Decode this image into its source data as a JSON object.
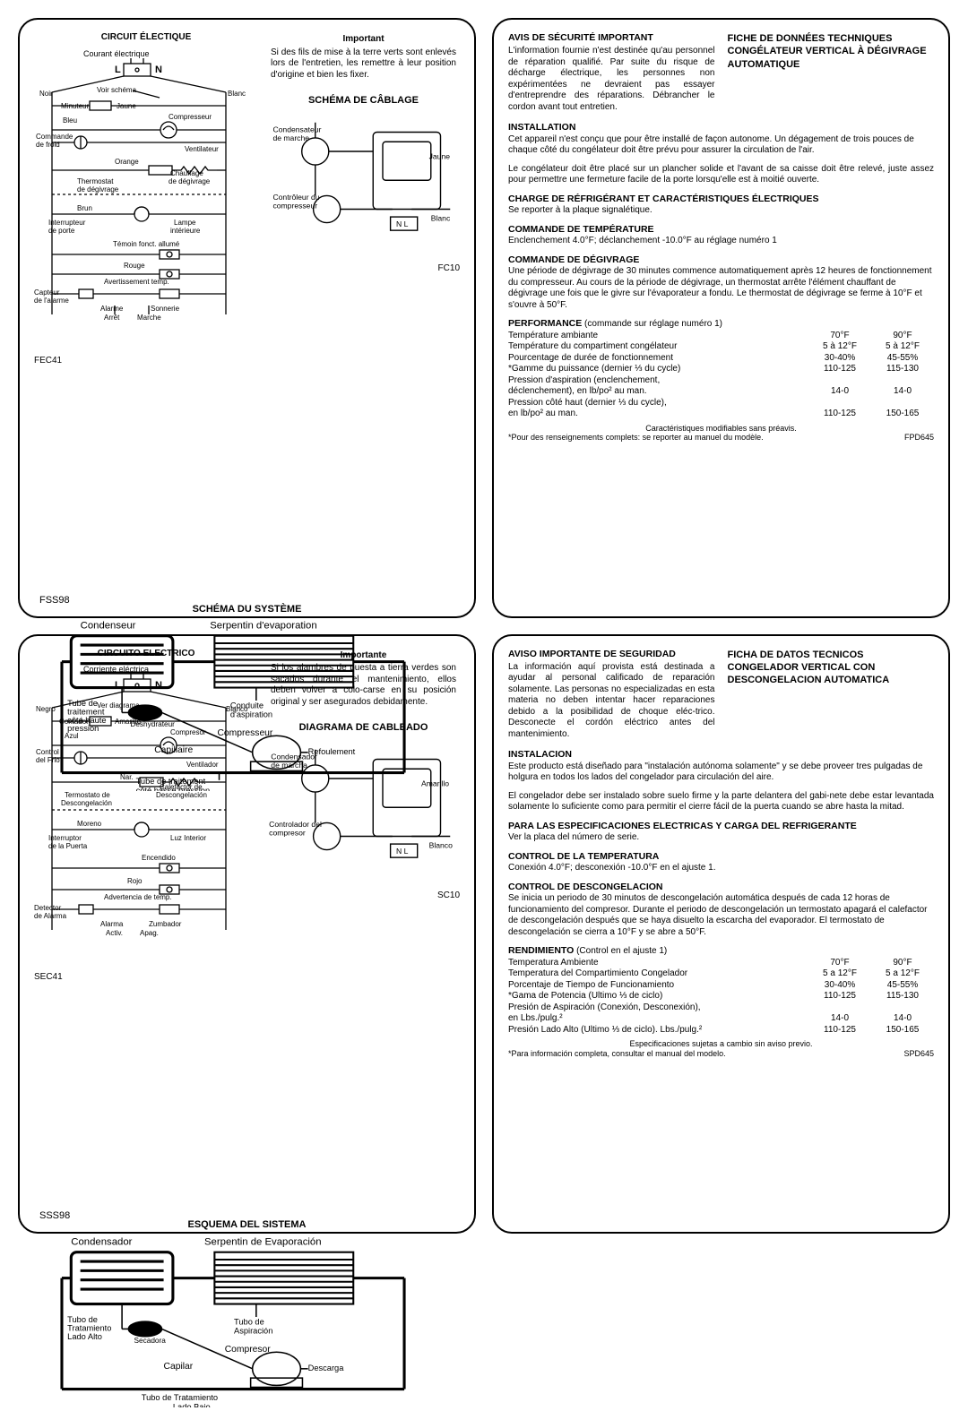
{
  "fr": {
    "circuit_title": "CIRCUIT ÉLECTIQUE",
    "elec_current": "Courant électrique",
    "L": "L",
    "N": "N",
    "noir": "Noir",
    "blanc": "Blanc",
    "voir_schema": "Voir schéma",
    "minuteur": "Minuteur",
    "jaune": "Jaune",
    "bleu": "Bleu",
    "compresseur": "Compresseur",
    "commande_froid": "Commande\nde froid",
    "ventilateur": "Ventilateur",
    "orange": "Orange",
    "chauffage": "Chauffage\nde dégivrage",
    "thermostat": "Thermostat\nde dégivrage",
    "brun": "Brun",
    "interrupteur": "Interrupteur\nde porte",
    "lampe": "Lampe\nintérieure",
    "temoin": "Témoin fonct. allumé",
    "rouge": "Rouge",
    "avert": "Avertissement temp.",
    "capteur": "Capteur\nde l'alarme",
    "alarme": "Alarme",
    "sonnerie": "Sonnerie",
    "arret": "Arrêt",
    "marche": "Marche",
    "fec": "FEC41",
    "fc10": "FC10",
    "important_title": "Important",
    "important_body": "Si des fils de mise à la terre verts sont enlevés lors de l'entretien, les remettre à leur position d'origine et bien les fixer.",
    "wiring_title": "SCHÉMA DE CÂBLAGE",
    "cond_marche": "Condensateur\nde marche",
    "ctrl_comp": "Contrôleur du\ncompresseur",
    "sys_title": "SCHÉMA DU SYSTÈME",
    "condenseur": "Condenseur",
    "serpentin": "Serpentin d'evaporation",
    "tube_hp": "Tube de\ntraitement\ncôté haute\npression",
    "deshy": "Déshydrateur",
    "conduite": "Conduite\nd'aspiration",
    "compresseur2": "Compresseur",
    "capillaire": "Capillaire",
    "refoul": "Refoulement",
    "tube_bp": "Tube de traitement\ncôté basse pression",
    "fss": "FSS98"
  },
  "es": {
    "circuit_title": "CIRCUITO ELECTRICO",
    "elec_current": "Corriente eléctrica",
    "L": "L",
    "N": "N",
    "negro": "Negro",
    "blanco": "Blanco",
    "ver_diag": "Ver diagrama",
    "contador": "Contador",
    "amarillo": "Amarillo",
    "azul": "Azul",
    "compresor": "Compresor",
    "control_frio": "Control\ndel Frio",
    "ventilador": "Ventilador",
    "nar": "Nar.",
    "calefactor": "Calefactor de\nDescongelación",
    "termostato": "Termostato de\nDescongelación",
    "moreno": "Moreno",
    "interruptor": "Interruptor\nde la Puerta",
    "luz": "Luz Interior",
    "encendido": "Encendido",
    "rojo": "Rojo",
    "advert": "Advertencia de temp.",
    "detector": "Detector\nde Alarma",
    "alarma": "Alarma",
    "zumbador": "Zumbador",
    "activ": "Activ.",
    "apag": "Apag.",
    "sec": "SEC41",
    "sc10": "SC10",
    "important_title": "Importante",
    "important_body": "Si los alambres de puesta a tierra verdes son sacados durante el mantenimiento, ellos deben volver a colo-carse en su posición original y ser asegurados debidamente.",
    "wiring_title": "DIAGRAMA DE CABLEADO",
    "cond_marcha": "Condensador\nde marcha",
    "ctrl_comp": "Controlador del\ncompresor",
    "sys_title": "ESQUEMA DEL SISTEMA",
    "condensador": "Condensador",
    "serpentin": "Serpentin de Evaporación",
    "tubo_alto": "Tubo de\nTratamiento\nLado Alto",
    "secadora": "Secadora",
    "tubo_asp": "Tubo de\nAspiración",
    "compresor2": "Compresor",
    "capilar": "Capilar",
    "descarga": "Descarga",
    "tubo_bajo": "Tubo de Tratamiento\nLado Bajo",
    "sss": "SSS98"
  },
  "fr_right": {
    "safety_title": "AVIS DE SÉCURITÉ IMPORTANT",
    "safety_body": "L'information fournie n'est destinée qu'au personnel de réparation qualifié. Par suite du risque de décharge électrique, les personnes non expérimentées ne devraient pas essayer d'entreprendre des réparations. Débrancher le cordon avant tout entretien.",
    "data_title": "FICHE DE DONNÉES TECHNIQUES CONGÉLATEUR VERTICAL À DÉGIVRAGE AUTOMATIQUE",
    "install_h": "INSTALLATION",
    "install_1": "Cet appareil n'est conçu que pour être installé de façon autonome. Un dégagement de trois pouces de chaque côté du congélateur doit être prévu pour assurer la circulation de l'air.",
    "install_2": "Le congélateur doit être placé sur un plancher solide et l'avant de sa caisse doit être relevé, juste assez pour permettre une fermeture facile de la porte lorsqu'elle est à moitié ouverte.",
    "charge_h": "CHARGE DE RÉFRIGÉRANT ET CARACTÉRISTIQUES ÉLECTRIQUES",
    "charge_b": "Se reporter à la plaque signalétique.",
    "temp_h": "COMMANDE DE TEMPÉRATURE",
    "temp_b": "Enclenchement 4.0°F; déclanchement -10.0°F au réglage numéro 1",
    "defrost_h": "COMMANDE DE DÉGIVRAGE",
    "defrost_b": "Une période de dégivrage de 30 minutes commence automatiquement après 12 heures de fonctionnement du compresseur. Au cours de la période de dégivrage, un thermostat arrête l'élément chauffant de dégivrage une fois que le givre sur l'évaporateur a fondu. Le thermostat de dégivrage se ferme à 10°F et s'ouvre à 50°F.",
    "perf_h": "PERFORMANCE",
    "perf_sub": "(commande sur réglage numéro 1)",
    "cols": [
      "70°F",
      "90°F"
    ],
    "rows": [
      {
        "l": "Température ambiante",
        "a": "70°F",
        "b": "90°F",
        "hdr": true
      },
      {
        "l": "Température du compartiment congélateur",
        "a": "5 à 12°F",
        "b": "5 à 12°F"
      },
      {
        "l": "Pourcentage de durée de fonctionnement",
        "a": "30-40%",
        "b": "45-55%"
      },
      {
        "l": "*Gamme du puissance (dernier ⅓ du cycle)",
        "a": "110-125",
        "b": "115-130"
      },
      {
        "l": "Pression d'aspiration (enclenchement,",
        "a": "",
        "b": ""
      },
      {
        "l": "déclenchement), en lb/po² au man.",
        "a": "14-0",
        "b": "14-0"
      },
      {
        "l": "Pression côté haut (dernier ⅓ du cycle),",
        "a": "",
        "b": ""
      },
      {
        "l": "en lb/po² au man.",
        "a": "110-125",
        "b": "150-165"
      }
    ],
    "foot1": "Caractéristiques modifiables sans préavis.",
    "foot2": "*Pour des renseignements complets: se reporter au manuel du modèle.",
    "code": "FPD645"
  },
  "es_right": {
    "safety_title": "AVISO IMPORTANTE DE SEGURIDAD",
    "safety_body": "La información aquí provista está destinada a ayudar al personal calificado de reparación solamente. Las personas no especializadas en esta materia no deben intentar hacer reparaciones debido a la posibilidad de choque eléc-trico. Desconecte el cordón eléctrico antes del mantenimiento.",
    "data_title": "FICHA DE DATOS TECNICOS CONGELADOR VERTICAL CON DESCONGELACION AUTOMATICA",
    "install_h": "INSTALACION",
    "install_1": "Este producto está diseñado para \"instalación autónoma solamente\" y se debe proveer tres pulgadas de holgura en todos los lados del congelador para circulación del aire.",
    "install_2": "El congelador debe ser instalado sobre suelo firme y la parte delantera del gabi-nete debe estar levantada solamente lo suficiente como para permitir el cierre fácil de la puerta cuando se abre hasta la mitad.",
    "charge_h": "PARA LAS ESPECIFICACIONES ELECTRICAS Y CARGA DEL REFRIGERANTE",
    "charge_b": "Ver la placa del número de serie.",
    "temp_h": "CONTROL DE LA TEMPERATURA",
    "temp_b": "Conexión 4.0°F; desconexión -10.0°F en el ajuste 1.",
    "defrost_h": "CONTROL DE DESCONGELACION",
    "defrost_b": "Se inicia un periodo de 30 minutos de descongelación automática después de cada 12 horas de funcionamiento del compresor. Durante el periodo de descongelación un termostato apagará el calefactor de descongelación después que se haya disuelto la escarcha del evaporador. El termostato de descongelación se cierra a 10°F y se abre a 50°F.",
    "perf_h": "RENDIMIENTO",
    "perf_sub": "(Control en el ajuste 1)",
    "rows": [
      {
        "l": "Temperatura Ambiente",
        "a": "70°F",
        "b": "90°F",
        "hdr": true
      },
      {
        "l": "Temperatura del Compartimiento Congelador",
        "a": "5 a 12°F",
        "b": "5 a 12°F"
      },
      {
        "l": "Porcentaje de Tiempo de Funcionamiento",
        "a": "30-40%",
        "b": "45-55%"
      },
      {
        "l": "*Gama de Potencia (Ultimo ⅓ de ciclo)",
        "a": "110-125",
        "b": "115-130"
      },
      {
        "l": "Presión de Aspiración (Conexión, Desconexión),",
        "a": "",
        "b": ""
      },
      {
        "l": "en Lbs./pulg.²",
        "a": "14-0",
        "b": "14-0"
      },
      {
        "l": "Presión Lado Alto (Ultimo ⅓ de ciclo). Lbs./pulg.²",
        "a": "110-125",
        "b": "150-165"
      }
    ],
    "foot1": "Especificaciones sujetas a cambio sin aviso previo.",
    "foot2": "*Para información completa, consultar el manual del modelo.",
    "code": "SPD645"
  }
}
